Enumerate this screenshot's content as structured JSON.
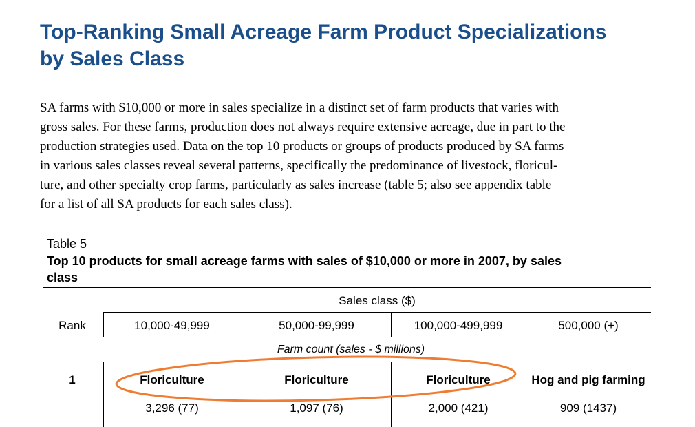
{
  "header": {
    "title_lines": [
      "Top-Ranking Small Acreage Farm Product Specializations",
      "by Sales Class"
    ]
  },
  "body": {
    "paragraph_lines": [
      "SA farms with $10,000 or more in sales specialize in a distinct set of farm products that varies with",
      "gross sales.  For these farms, production does not always require extensive acreage, due in part to the",
      "production strategies used. Data on the top 10 products or groups of products produced by SA farms",
      "in various sales classes reveal several patterns, specifically the predominance of livestock, floricul-",
      "ture, and other specialty crop farms, particularly as sales increase (table 5; also see appendix table",
      "for a list of all SA products for each sales class)."
    ]
  },
  "table": {
    "label": "Table 5",
    "caption_lines": [
      "Top 10 products for small acreage farms with sales of $10,000 or more in 2007, by sales",
      "class"
    ],
    "group_header": "Sales class ($)",
    "columns": [
      "Rank",
      "10,000-49,999",
      "50,000-99,999",
      "100,000-499,999",
      "500,000 (+)"
    ],
    "subheader": "Farm count (sales - $ millions)",
    "rows": [
      {
        "rank": "1",
        "products": [
          "Floriculture",
          "Floriculture",
          "Floriculture",
          "Hog and pig farming"
        ],
        "counts": [
          "3,296 (77)",
          "1,097 (76)",
          "2,000 (421)",
          "909 (1437)"
        ]
      }
    ]
  }
}
